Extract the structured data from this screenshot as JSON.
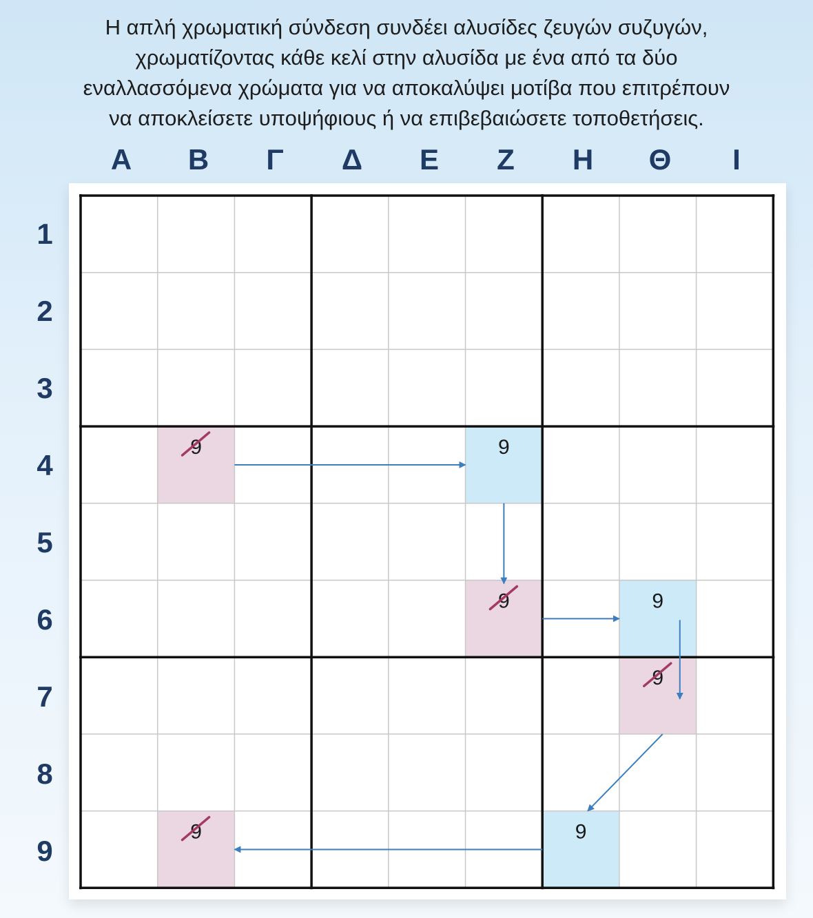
{
  "caption": {
    "lines": [
      "Η απλή χρωματική σύνδεση συνδέει αλυσίδες ζευγών συζυγών,",
      "χρωματίζοντας κάθε κελί στην αλυσίδα με ένα από τα δύο",
      "εναλλασσόμενα χρώματα για να αποκαλύψει μοτίβα που επιτρέπουν",
      "να αποκλείσετε υποψήφιους ή να επιβεβαιώσετε τοποθετήσεις."
    ]
  },
  "columns": [
    "Α",
    "Β",
    "Γ",
    "Δ",
    "Ε",
    "Ζ",
    "Η",
    "Θ",
    "Ι"
  ],
  "rows": [
    "1",
    "2",
    "3",
    "4",
    "5",
    "6",
    "7",
    "8",
    "9"
  ],
  "colors": {
    "blue_cell": "#cdeaf8",
    "pink_cell": "#ead7e1",
    "arrow": "#3d7fbe",
    "strike": "#a33a63",
    "grid_thin": "#c8c8c8",
    "grid_thick": "#111111"
  },
  "cells": [
    {
      "col": "Β",
      "row": "4",
      "color": "pink",
      "digit": "9",
      "struck": true
    },
    {
      "col": "Ζ",
      "row": "4",
      "color": "blue",
      "digit": "9",
      "struck": false
    },
    {
      "col": "Ζ",
      "row": "6",
      "color": "pink",
      "digit": "9",
      "struck": true
    },
    {
      "col": "Θ",
      "row": "6",
      "color": "blue",
      "digit": "9",
      "struck": false
    },
    {
      "col": "Θ",
      "row": "7",
      "color": "pink",
      "digit": "9",
      "struck": true
    },
    {
      "col": "Η",
      "row": "9",
      "color": "blue",
      "digit": "9",
      "struck": false
    },
    {
      "col": "Β",
      "row": "9",
      "color": "pink",
      "digit": "9",
      "struck": true
    }
  ],
  "chain": [
    {
      "from": "Β4",
      "to": "Ζ4"
    },
    {
      "from": "Ζ4",
      "to": "Ζ6"
    },
    {
      "from": "Ζ6",
      "to": "Θ6"
    },
    {
      "from": "Θ6",
      "to": "Θ7"
    },
    {
      "from": "Θ7",
      "to": "Η9"
    },
    {
      "from": "Η9",
      "to": "Β9"
    }
  ]
}
